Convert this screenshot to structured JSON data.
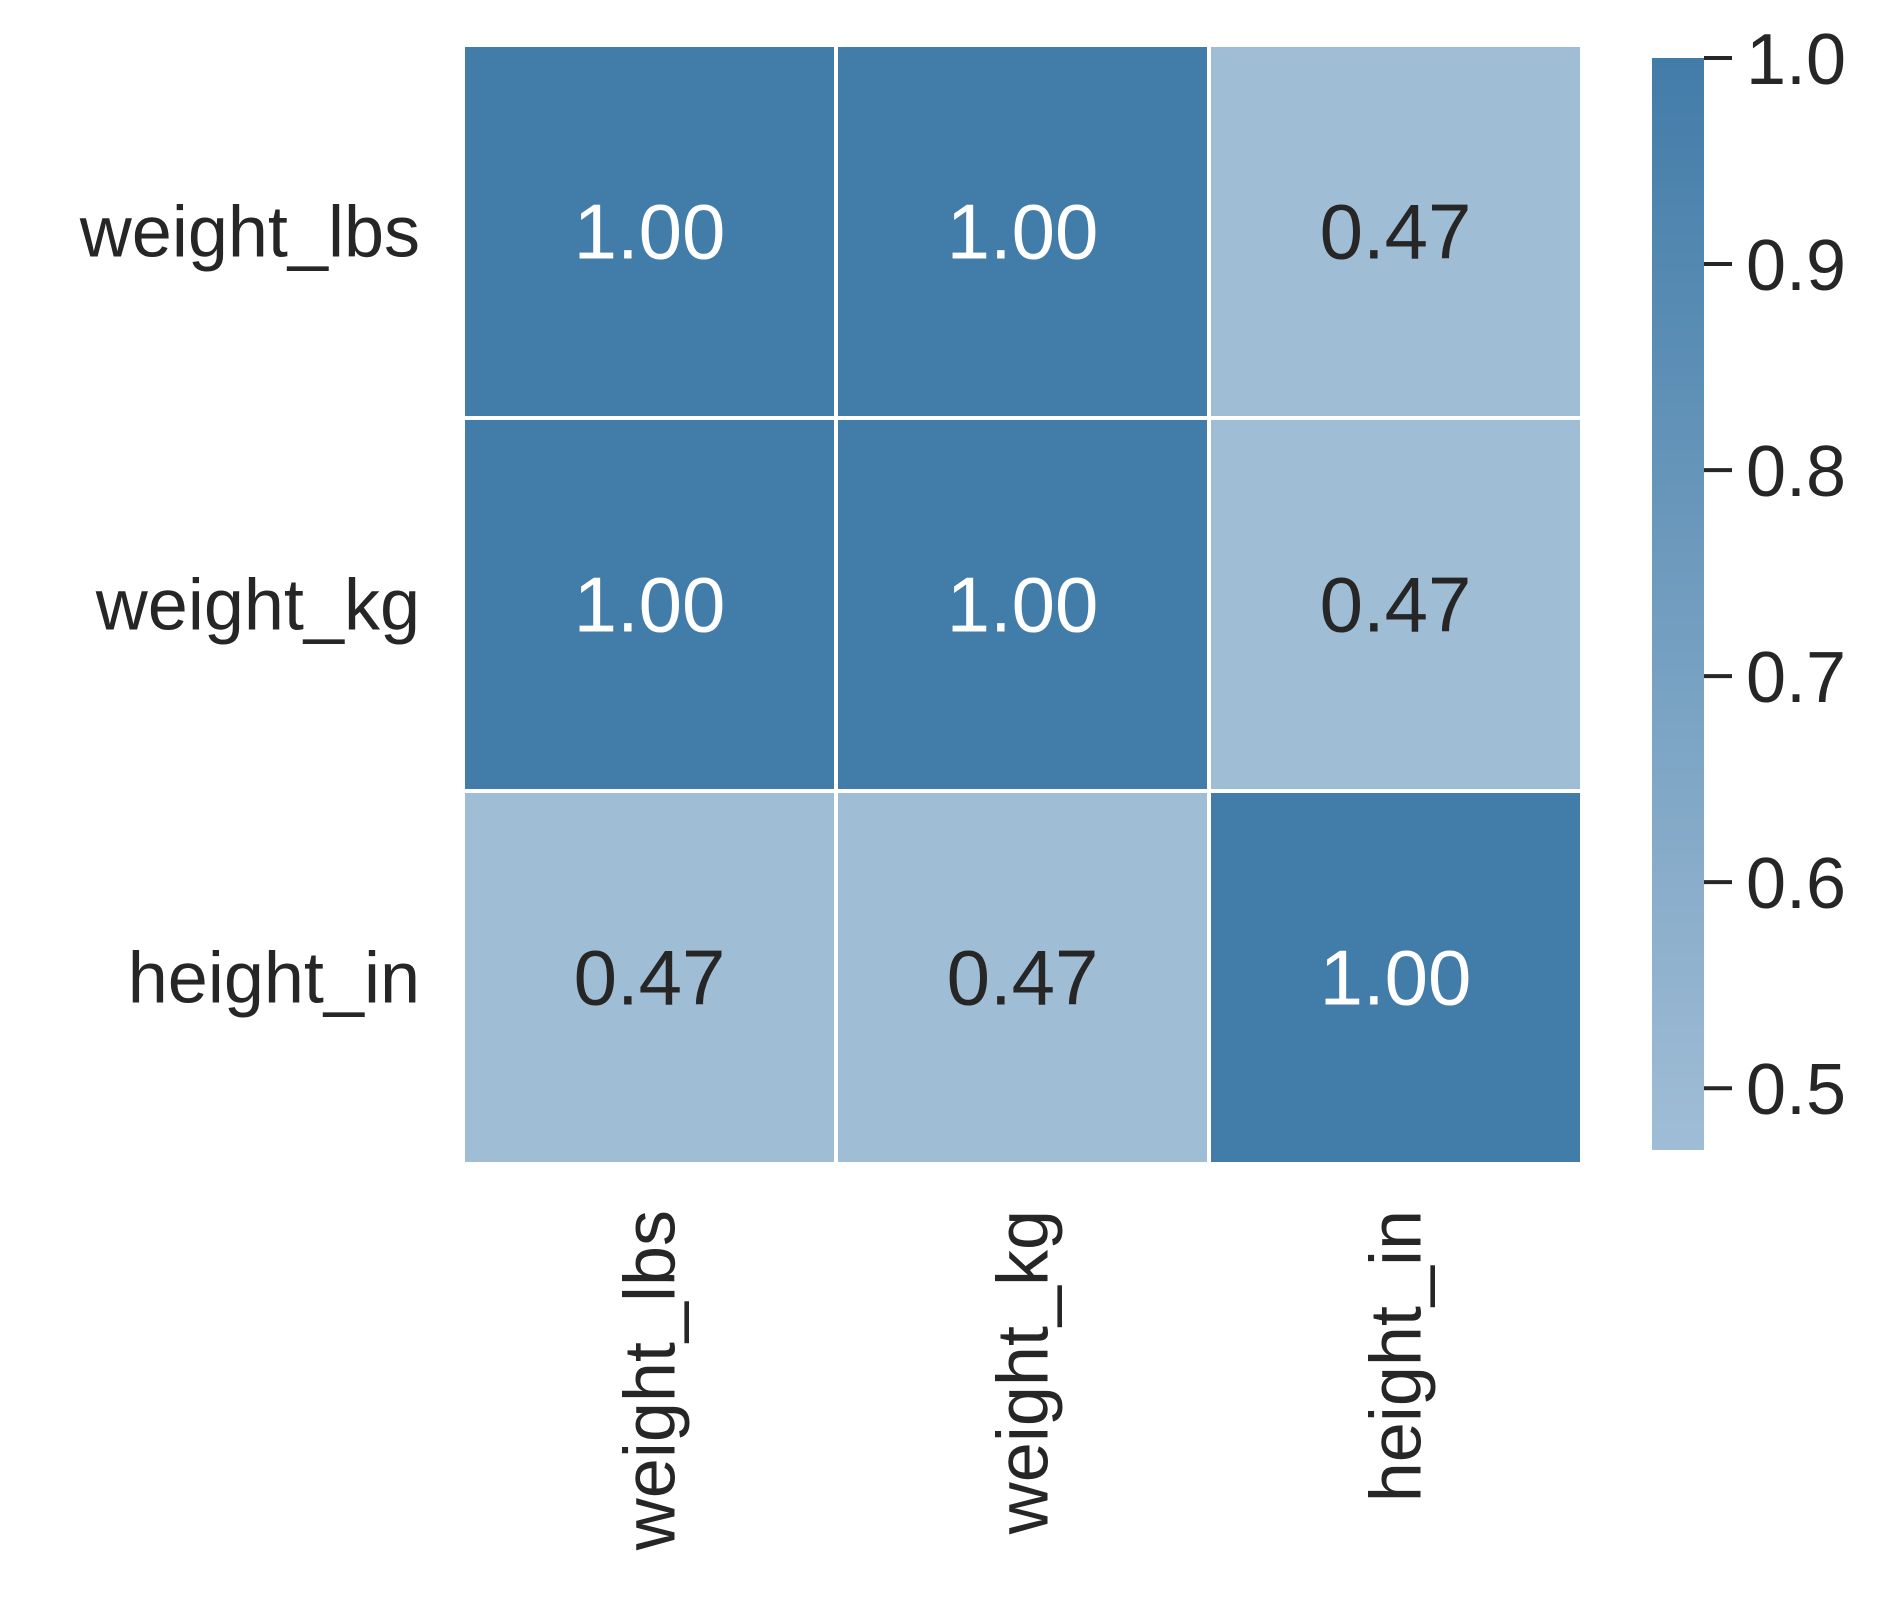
{
  "chart_data": {
    "type": "heatmap",
    "rows": [
      "weight_lbs",
      "weight_kg",
      "height_in"
    ],
    "columns": [
      "weight_lbs",
      "weight_kg",
      "height_in"
    ],
    "values": [
      [
        1.0,
        1.0,
        0.47
      ],
      [
        1.0,
        1.0,
        0.47
      ],
      [
        0.47,
        0.47,
        1.0
      ]
    ],
    "cell_labels": [
      [
        "1.00",
        "1.00",
        "0.47"
      ],
      [
        "1.00",
        "1.00",
        "0.47"
      ],
      [
        "0.47",
        "0.47",
        "1.00"
      ]
    ],
    "colorbar": {
      "range": [
        0.47,
        1.0
      ],
      "ticks": [
        0.5,
        0.6,
        0.7,
        0.8,
        0.9,
        1.0
      ],
      "tick_labels": [
        "0.5",
        "0.6",
        "0.7",
        "0.8",
        "0.9",
        "1.0"
      ],
      "placement": "right"
    },
    "colors": {
      "high": "#427ca8",
      "low": "#a0bdd6",
      "text_on_dark": "#ffffff",
      "text_on_light": "#262626",
      "grid": "#ffffff"
    },
    "grid": false,
    "legend": "colorbar-right"
  }
}
